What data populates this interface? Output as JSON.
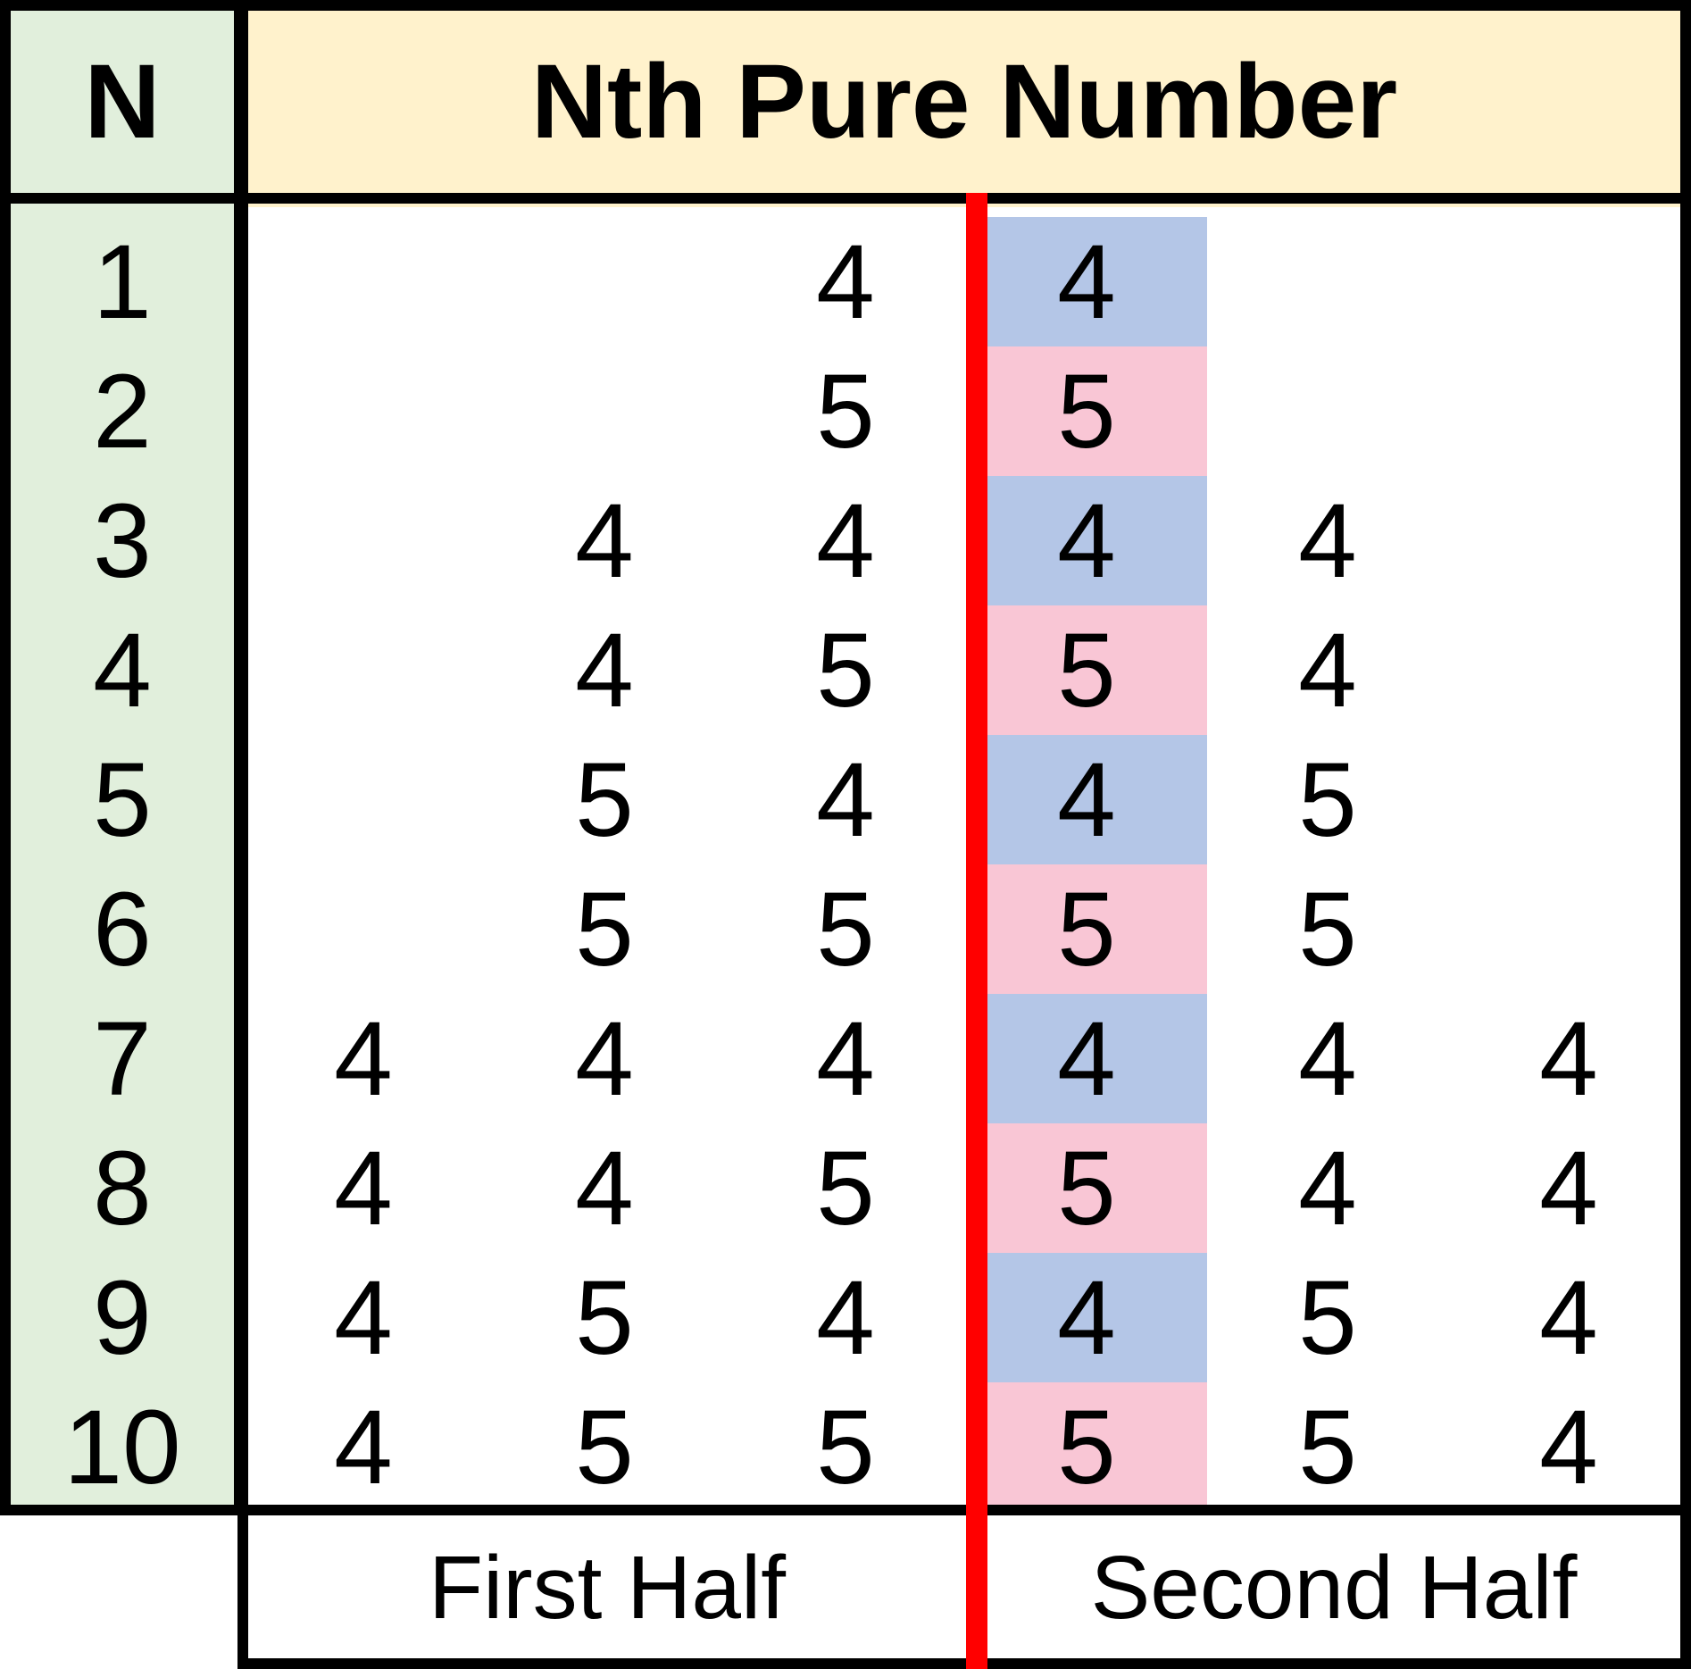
{
  "header": {
    "n_label": "N",
    "title": "Nth Pure Number"
  },
  "colors": {
    "n_column_bg": "#e1efdc",
    "header_bg": "#fff2cc",
    "blue_cell": "#b4c6e7",
    "pink_cell": "#f9c6d5",
    "divider": "#ff0000",
    "border": "#000000"
  },
  "rows": [
    {
      "n": "1",
      "digits": [
        "",
        "",
        "4",
        "4",
        "",
        ""
      ]
    },
    {
      "n": "2",
      "digits": [
        "",
        "",
        "5",
        "5",
        "",
        ""
      ]
    },
    {
      "n": "3",
      "digits": [
        "",
        "4",
        "4",
        "4",
        "4",
        ""
      ]
    },
    {
      "n": "4",
      "digits": [
        "",
        "4",
        "5",
        "5",
        "4",
        ""
      ]
    },
    {
      "n": "5",
      "digits": [
        "",
        "5",
        "4",
        "4",
        "5",
        ""
      ]
    },
    {
      "n": "6",
      "digits": [
        "",
        "5",
        "5",
        "5",
        "5",
        ""
      ]
    },
    {
      "n": "7",
      "digits": [
        "4",
        "4",
        "4",
        "4",
        "4",
        "4"
      ]
    },
    {
      "n": "8",
      "digits": [
        "4",
        "4",
        "5",
        "5",
        "4",
        "4"
      ]
    },
    {
      "n": "9",
      "digits": [
        "4",
        "5",
        "4",
        "4",
        "5",
        "4"
      ]
    },
    {
      "n": "10",
      "digits": [
        "4",
        "5",
        "5",
        "5",
        "5",
        "4"
      ]
    }
  ],
  "footer": {
    "first_half": "First Half",
    "second_half": "Second Half"
  }
}
